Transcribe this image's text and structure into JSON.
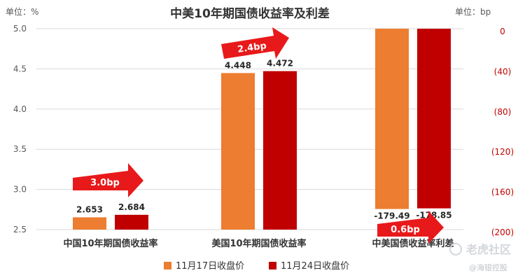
{
  "chart_data": {
    "type": "bar",
    "title": "中美10年期国债收益率及利差",
    "left_axis_unit": "单位：%",
    "right_axis_unit": "单位：bp",
    "left_axis": {
      "ylim": [
        2.5,
        5.0
      ],
      "ticks": [
        "5.0",
        "4.5",
        "4.0",
        "3.5",
        "3.0",
        "2.5"
      ],
      "tick_values": [
        5.0,
        4.5,
        4.0,
        3.5,
        3.0,
        2.5
      ]
    },
    "right_axis": {
      "ylim": [
        -200,
        0
      ],
      "ticks": [
        "0",
        "(40)",
        "(80)",
        "(120)",
        "(160)",
        "(200)"
      ],
      "tick_values": [
        0,
        -40,
        -80,
        -120,
        -160,
        -200
      ]
    },
    "categories": [
      "中国10年期国债收益率",
      "美国10年期国债收益率",
      "中美国债收益率利差"
    ],
    "category_axis": [
      "left",
      "left",
      "right"
    ],
    "series": [
      {
        "name": "11月17日收盘价",
        "color": "#ed7d31",
        "values": [
          2.653,
          4.448,
          -179.49
        ],
        "labels": [
          "2.653",
          "4.448",
          "-179.49"
        ]
      },
      {
        "name": "11月24日收盘价",
        "color": "#c00000",
        "values": [
          2.684,
          4.472,
          -178.85
        ],
        "labels": [
          "2.684",
          "4.472",
          "-178.85"
        ]
      }
    ],
    "annotations": [
      "3.0bp",
      "2.4bp",
      "0.6bp"
    ],
    "legend_position": "bottom",
    "grid": true
  },
  "watermark": {
    "brand": "老虎社区",
    "handle": "@海银控股"
  }
}
